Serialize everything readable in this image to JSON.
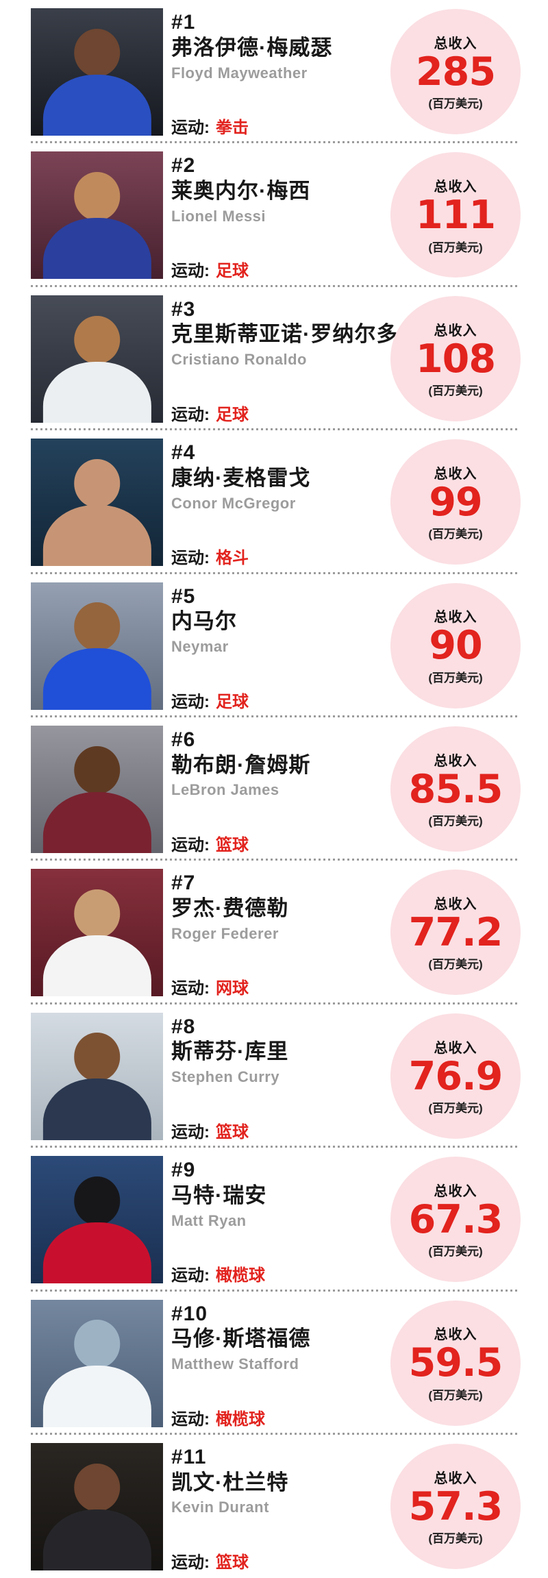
{
  "page": {
    "background": "#ffffff",
    "accent_red": "#e2231e",
    "circle_pink": "#fbdfe3",
    "divider_gray": "#9b9b9b",
    "income_label": "总收入",
    "income_unit": "(百万美元)",
    "sport_prefix": "运动:"
  },
  "ranking": [
    {
      "rank": "#1",
      "name_cn": "弗洛伊德·梅威瑟",
      "name_en": "Floyd Mayweather",
      "sport": "拳击",
      "income": "285",
      "photo": {
        "bg1": "#3a3f49",
        "bg2": "#15181f",
        "jersey": "#2a4fc0",
        "head": "#6e4631"
      }
    },
    {
      "rank": "#2",
      "name_cn": "莱奥内尔·梅西",
      "name_en": "Lionel Messi",
      "sport": "足球",
      "income": "111",
      "photo": {
        "bg1": "#7c4456",
        "bg2": "#46202e",
        "jersey": "#2b3f9e",
        "head": "#c18a5c"
      }
    },
    {
      "rank": "#3",
      "name_cn": "克里斯蒂亚诺·罗纳尔多",
      "name_en": "Cristiano Ronaldo",
      "sport": "足球",
      "income": "108",
      "photo": {
        "bg1": "#474c57",
        "bg2": "#262a33",
        "jersey": "#eceff1",
        "head": "#b07a4b"
      }
    },
    {
      "rank": "#4",
      "name_cn": "康纳·麦格雷戈",
      "name_en": "Conor McGregor",
      "sport": "格斗",
      "income": "99",
      "photo": {
        "bg1": "#24425c",
        "bg2": "#122536",
        "jersey": "#c79575",
        "head": "#c79575"
      }
    },
    {
      "rank": "#5",
      "name_cn": "内马尔",
      "name_en": "Neymar",
      "sport": "足球",
      "income": "90",
      "photo": {
        "bg1": "#95a0b2",
        "bg2": "#626d80",
        "jersey": "#2050d8",
        "head": "#95653d"
      }
    },
    {
      "rank": "#6",
      "name_cn": "勒布朗·詹姆斯",
      "name_en": "LeBron James",
      "sport": "篮球",
      "income": "85.5",
      "photo": {
        "bg1": "#96969e",
        "bg2": "#63636c",
        "jersey": "#7a2230",
        "head": "#5f3a22"
      }
    },
    {
      "rank": "#7",
      "name_cn": "罗杰·费德勒",
      "name_en": "Roger Federer",
      "sport": "网球",
      "income": "77.2",
      "photo": {
        "bg1": "#86303c",
        "bg2": "#571a24",
        "jersey": "#f4f4f4",
        "head": "#c99d74"
      }
    },
    {
      "rank": "#8",
      "name_cn": "斯蒂芬·库里",
      "name_en": "Stephen Curry",
      "sport": "篮球",
      "income": "76.9",
      "photo": {
        "bg1": "#d4dbe2",
        "bg2": "#aab4bd",
        "jersey": "#2b3850",
        "head": "#7d5233"
      }
    },
    {
      "rank": "#9",
      "name_cn": "马特·瑞安",
      "name_en": "Matt Ryan",
      "sport": "橄榄球",
      "income": "67.3",
      "photo": {
        "bg1": "#2c4a78",
        "bg2": "#1a2f50",
        "jersey": "#c8102e",
        "head": "#17171a"
      }
    },
    {
      "rank": "#10",
      "name_cn": "马修·斯塔福德",
      "name_en": "Matthew Stafford",
      "sport": "橄榄球",
      "income": "59.5",
      "photo": {
        "bg1": "#74879f",
        "bg2": "#4c5f77",
        "jersey": "#f2f5f7",
        "head": "#9db3c4"
      }
    },
    {
      "rank": "#11",
      "name_cn": "凯文·杜兰特",
      "name_en": "Kevin Durant",
      "sport": "篮球",
      "income": "57.3",
      "photo": {
        "bg1": "#2a2622",
        "bg2": "#151311",
        "jersey": "#26262a",
        "head": "#6e4631"
      }
    }
  ],
  "chart_data": {
    "type": "table",
    "value_label": "总收入",
    "value_unit": "百万美元",
    "rows": [
      {
        "rank": 1,
        "athlete_cn": "弗洛伊德·梅威瑟",
        "athlete_en": "Floyd Mayweather",
        "sport": "拳击",
        "income": 285
      },
      {
        "rank": 2,
        "athlete_cn": "莱奥内尔·梅西",
        "athlete_en": "Lionel Messi",
        "sport": "足球",
        "income": 111
      },
      {
        "rank": 3,
        "athlete_cn": "克里斯蒂亚诺·罗纳尔多",
        "athlete_en": "Cristiano Ronaldo",
        "sport": "足球",
        "income": 108
      },
      {
        "rank": 4,
        "athlete_cn": "康纳·麦格雷戈",
        "athlete_en": "Conor McGregor",
        "sport": "格斗",
        "income": 99
      },
      {
        "rank": 5,
        "athlete_cn": "内马尔",
        "athlete_en": "Neymar",
        "sport": "足球",
        "income": 90
      },
      {
        "rank": 6,
        "athlete_cn": "勒布朗·詹姆斯",
        "athlete_en": "LeBron James",
        "sport": "篮球",
        "income": 85.5
      },
      {
        "rank": 7,
        "athlete_cn": "罗杰·费德勒",
        "athlete_en": "Roger Federer",
        "sport": "网球",
        "income": 77.2
      },
      {
        "rank": 8,
        "athlete_cn": "斯蒂芬·库里",
        "athlete_en": "Stephen Curry",
        "sport": "篮球",
        "income": 76.9
      },
      {
        "rank": 9,
        "athlete_cn": "马特·瑞安",
        "athlete_en": "Matt Ryan",
        "sport": "橄榄球",
        "income": 67.3
      },
      {
        "rank": 10,
        "athlete_cn": "马修·斯塔福德",
        "athlete_en": "Matthew Stafford",
        "sport": "橄榄球",
        "income": 59.5
      },
      {
        "rank": 11,
        "athlete_cn": "凯文·杜兰特",
        "athlete_en": "Kevin Durant",
        "sport": "篮球",
        "income": 57.3
      }
    ]
  }
}
